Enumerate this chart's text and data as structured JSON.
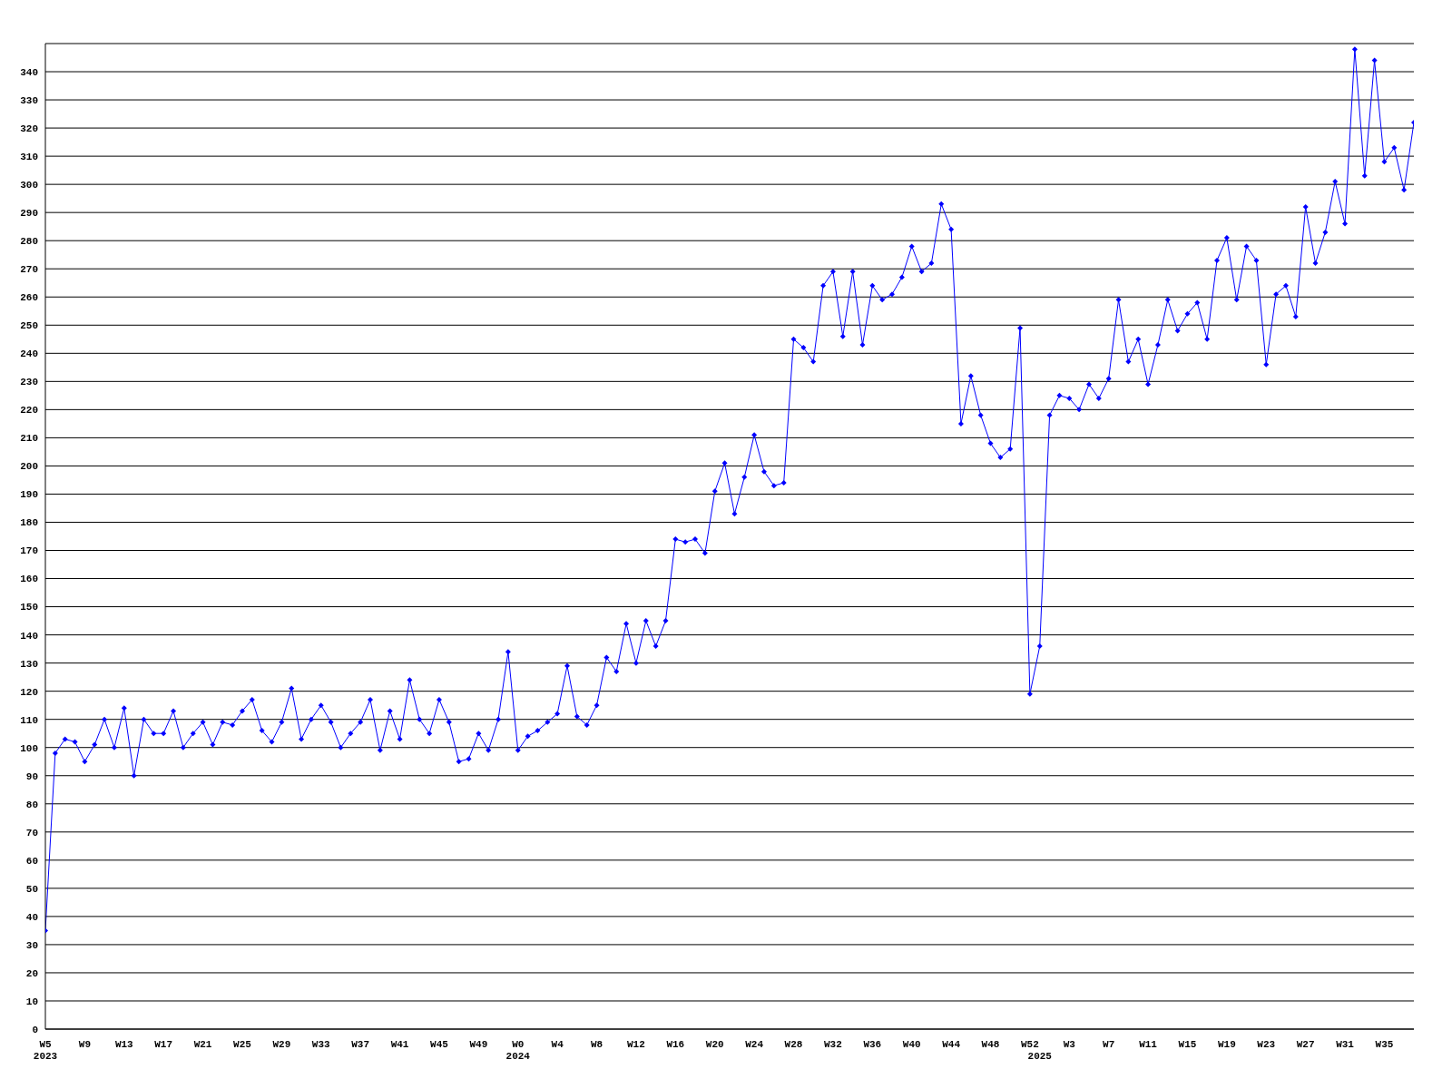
{
  "chart_data": {
    "type": "line",
    "categories": [
      "W5\n2023",
      null,
      null,
      null,
      "W9",
      null,
      null,
      null,
      "W13",
      null,
      null,
      null,
      "W17",
      null,
      null,
      null,
      "W21",
      null,
      null,
      null,
      "W25",
      null,
      null,
      null,
      "W29",
      null,
      null,
      null,
      "W33",
      null,
      null,
      null,
      "W37",
      null,
      null,
      null,
      "W41",
      null,
      null,
      null,
      "W45",
      null,
      null,
      null,
      "W49",
      null,
      null,
      null,
      "W0\n2024",
      null,
      null,
      null,
      "W4",
      null,
      null,
      null,
      "W8",
      null,
      null,
      null,
      "W12",
      null,
      null,
      null,
      "W16",
      null,
      null,
      null,
      "W20",
      null,
      null,
      null,
      "W24",
      null,
      null,
      null,
      "W28",
      null,
      null,
      null,
      "W32",
      null,
      null,
      null,
      "W36",
      null,
      null,
      null,
      "W40",
      null,
      null,
      null,
      "W44",
      null,
      null,
      null,
      "W48",
      null,
      null,
      null,
      "W52",
      "\n2025",
      null,
      null,
      "W3",
      null,
      null,
      null,
      "W7",
      null,
      null,
      null,
      "W11",
      null,
      null,
      null,
      "W15",
      null,
      null,
      null,
      "W19",
      null,
      null,
      null,
      "W23",
      null,
      null,
      null,
      "W27",
      null,
      null,
      null,
      "W31",
      null,
      null,
      null,
      "W35",
      null,
      null,
      null
    ],
    "values": [
      35,
      98,
      103,
      102,
      95,
      101,
      110,
      100,
      114,
      90,
      110,
      105,
      105,
      113,
      100,
      105,
      109,
      101,
      109,
      108,
      113,
      117,
      106,
      102,
      109,
      121,
      103,
      110,
      115,
      109,
      100,
      105,
      109,
      117,
      99,
      113,
      103,
      124,
      110,
      105,
      117,
      109,
      95,
      96,
      105,
      99,
      110,
      134,
      99,
      104,
      106,
      109,
      112,
      129,
      111,
      108,
      115,
      132,
      127,
      144,
      130,
      145,
      136,
      145,
      174,
      173,
      174,
      169,
      191,
      201,
      183,
      196,
      211,
      198,
      193,
      194,
      245,
      242,
      237,
      264,
      269,
      246,
      269,
      243,
      264,
      259,
      261,
      267,
      278,
      269,
      272,
      293,
      284,
      215,
      232,
      218,
      208,
      203,
      206,
      249,
      119,
      136,
      218,
      225,
      224,
      220,
      229,
      224,
      231,
      259,
      237,
      245,
      229,
      243,
      259,
      248,
      254,
      258,
      245,
      273,
      281,
      259,
      278,
      273,
      236,
      261,
      264,
      253,
      292,
      272,
      283,
      301,
      286,
      348,
      303,
      344,
      308,
      313,
      298,
      322
    ],
    "color": "#0000ff",
    "ylim": [
      0,
      350
    ],
    "yticks": [
      0,
      10,
      20,
      30,
      40,
      50,
      60,
      70,
      80,
      90,
      100,
      110,
      120,
      130,
      140,
      150,
      160,
      170,
      180,
      190,
      200,
      210,
      220,
      230,
      240,
      250,
      260,
      270,
      280,
      290,
      300,
      310,
      320,
      330,
      340
    ],
    "grid": "y",
    "marker": "diamond"
  }
}
